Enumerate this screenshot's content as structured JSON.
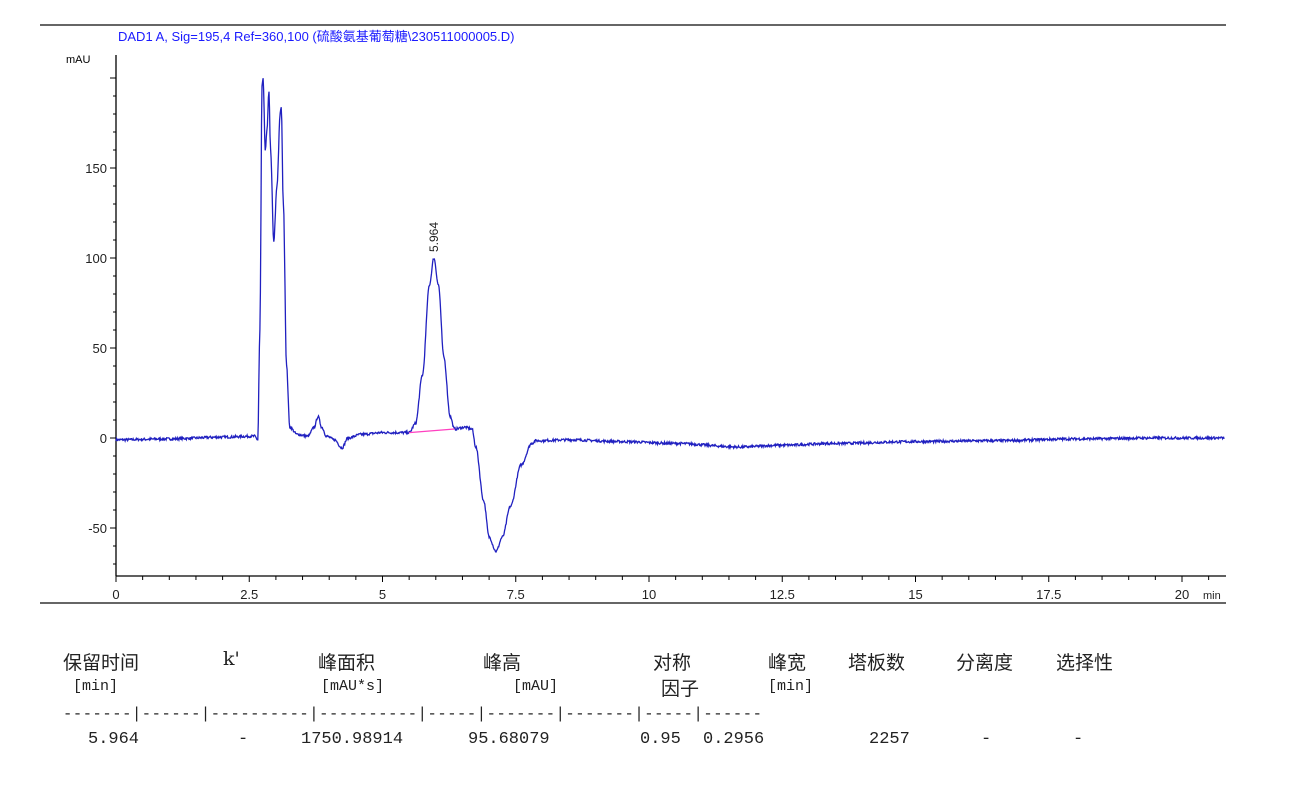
{
  "chart_data": {
    "type": "line",
    "title": "DAD1 A, Sig=195,4 Ref=360,100 (硫酸氨基葡萄糖\\230511000005.D)",
    "xlabel": "min",
    "ylabel": "mAU",
    "xlim": [
      0,
      20.8
    ],
    "ylim": [
      -76,
      210
    ],
    "x_ticks": [
      "0",
      "2.5",
      "5",
      "7.5",
      "10",
      "12.5",
      "15",
      "17.5",
      "20"
    ],
    "y_ticks": [
      "-50",
      "0",
      "50",
      "100",
      "150"
    ],
    "grid": false,
    "line_color": "#2020c0",
    "baseline_color": "#ff40c0",
    "series": [
      {
        "points": [
          [
            0,
            -1
          ],
          [
            1,
            -0.5
          ],
          [
            2,
            0.5
          ],
          [
            2.6,
            1
          ],
          [
            2.66,
            -1
          ],
          [
            2.7,
            60
          ],
          [
            2.74,
            195
          ],
          [
            2.76,
            200
          ],
          [
            2.8,
            160
          ],
          [
            2.83,
            170
          ],
          [
            2.87,
            192
          ],
          [
            2.9,
            160
          ],
          [
            2.96,
            109
          ],
          [
            3.02,
            140
          ],
          [
            3.08,
            180
          ],
          [
            3.1,
            184
          ],
          [
            3.14,
            130
          ],
          [
            3.2,
            40
          ],
          [
            3.26,
            6
          ],
          [
            3.4,
            2
          ],
          [
            3.6,
            1
          ],
          [
            3.72,
            6
          ],
          [
            3.79,
            12
          ],
          [
            3.86,
            6
          ],
          [
            3.95,
            1
          ],
          [
            4.1,
            -1
          ],
          [
            4.24,
            -5.5
          ],
          [
            4.35,
            0
          ],
          [
            4.6,
            2
          ],
          [
            5.0,
            3
          ],
          [
            5.5,
            3
          ],
          [
            5.62,
            8
          ],
          [
            5.75,
            35
          ],
          [
            5.88,
            85
          ],
          [
            5.964,
            100
          ],
          [
            6.05,
            85
          ],
          [
            6.15,
            45
          ],
          [
            6.27,
            12
          ],
          [
            6.35,
            5
          ],
          [
            6.55,
            6
          ],
          [
            6.68,
            5
          ],
          [
            6.75,
            -5
          ],
          [
            6.9,
            -35
          ],
          [
            7.0,
            -55
          ],
          [
            7.13,
            -63
          ],
          [
            7.25,
            -55
          ],
          [
            7.4,
            -38
          ],
          [
            7.6,
            -15
          ],
          [
            7.8,
            -3
          ],
          [
            7.88,
            -1.5
          ],
          [
            8.5,
            -1
          ],
          [
            9.5,
            -2
          ],
          [
            10.5,
            -3
          ],
          [
            11.7,
            -5
          ],
          [
            12.5,
            -4
          ],
          [
            13.5,
            -3
          ],
          [
            15,
            -2
          ],
          [
            16.5,
            -1.5
          ],
          [
            18,
            -0.5
          ],
          [
            19.5,
            0
          ],
          [
            20.8,
            0
          ]
        ]
      }
    ],
    "annotations": [
      {
        "x": 5.964,
        "y": 100,
        "text": "5.964"
      }
    ],
    "manual_baseline": [
      [
        5.5,
        3
      ],
      [
        6.35,
        5
      ]
    ]
  },
  "table": {
    "headers": [
      "保留时间",
      "k'",
      "峰面积",
      "峰高",
      "对称",
      "峰宽",
      "塔板数",
      "分离度",
      "选择性"
    ],
    "units": [
      "[min]",
      "",
      "[mAU*s]",
      "[mAU]",
      "因子",
      "[min]",
      "",
      "",
      ""
    ],
    "separator": "-------|------|----------|----------|-----|-------|-------|-----|------",
    "rows": [
      [
        "5.964",
        "-",
        "1750.98914",
        "95.68079",
        "0.95",
        "0.2956",
        "2257",
        "-",
        "-"
      ]
    ]
  }
}
